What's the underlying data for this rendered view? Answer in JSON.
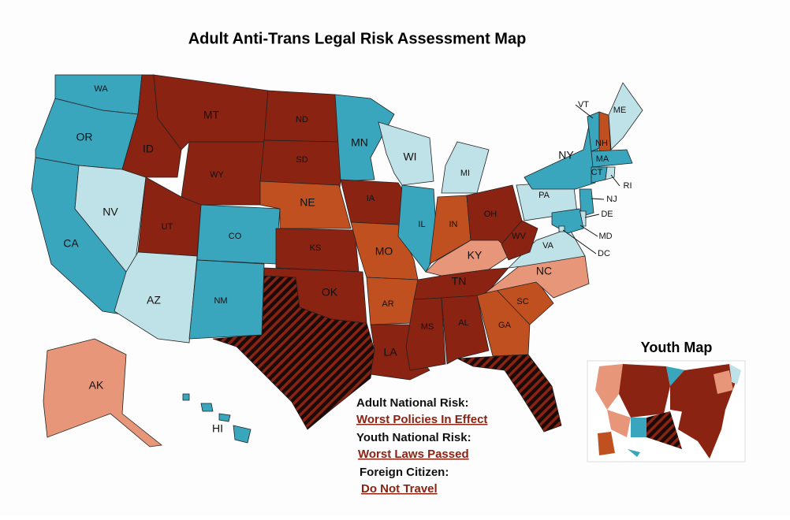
{
  "title": "Adult Anti-Trans Legal Risk Assessment Map",
  "states": [
    {
      "label": "WA",
      "color": "#3aa6be"
    },
    {
      "label": "OR",
      "color": "#3aa6be"
    },
    {
      "label": "CA",
      "color": "#3aa6be"
    },
    {
      "label": "NV",
      "color": "#bfe2e8"
    },
    {
      "label": "ID",
      "color": "#8b2313"
    },
    {
      "label": "MT",
      "color": "#8b2313"
    },
    {
      "label": "WY",
      "color": "#8b2313"
    },
    {
      "label": "UT",
      "color": "#8b2313"
    },
    {
      "label": "AZ",
      "color": "#bfe2e8"
    },
    {
      "label": "CO",
      "color": "#3aa6be"
    },
    {
      "label": "NM",
      "color": "#3aa6be"
    },
    {
      "label": "ND",
      "color": "#8b2313"
    },
    {
      "label": "SD",
      "color": "#8b2313"
    },
    {
      "label": "NE",
      "color": "#c0501f"
    },
    {
      "label": "KS",
      "color": "#8b2313"
    },
    {
      "label": "OK",
      "color": "#8b2313"
    },
    {
      "label": "MN",
      "color": "#3aa6be"
    },
    {
      "label": "IA",
      "color": "#8b2313"
    },
    {
      "label": "MO",
      "color": "#c0501f"
    },
    {
      "label": "AR",
      "color": "#c0501f"
    },
    {
      "label": "LA",
      "color": "#8b2313"
    },
    {
      "label": "WI",
      "color": "#bfe2e8"
    },
    {
      "label": "IL",
      "color": "#3aa6be"
    },
    {
      "label": "MI",
      "color": "#bfe2e8"
    },
    {
      "label": "IN",
      "color": "#c0501f"
    },
    {
      "label": "OH",
      "color": "#8b2313"
    },
    {
      "label": "KY",
      "color": "#e8967a"
    },
    {
      "label": "TN",
      "color": "#8b2313"
    },
    {
      "label": "MS",
      "color": "#8b2313"
    },
    {
      "label": "AL",
      "color": "#8b2313"
    },
    {
      "label": "GA",
      "color": "#c0501f"
    },
    {
      "label": "SC",
      "color": "#c0501f"
    },
    {
      "label": "NC",
      "color": "#e8967a"
    },
    {
      "label": "VA",
      "color": "#bfe2e8"
    },
    {
      "label": "WV",
      "color": "#8b2313"
    },
    {
      "label": "PA",
      "color": "#bfe2e8"
    },
    {
      "label": "NY",
      "color": "#3aa6be"
    },
    {
      "label": "VT",
      "color": "#3aa6be"
    },
    {
      "label": "NH",
      "color": "#c0501f"
    },
    {
      "label": "ME",
      "color": "#bfe2e8"
    },
    {
      "label": "MA",
      "color": "#3aa6be"
    },
    {
      "label": "CT",
      "color": "#3aa6be"
    },
    {
      "label": "RI",
      "color": "#bfe2e8"
    },
    {
      "label": "NJ",
      "color": "#3aa6be"
    },
    {
      "label": "DE",
      "color": "#bfe2e8"
    },
    {
      "label": "MD",
      "color": "#3aa6be"
    },
    {
      "label": "DC",
      "color": "#bfe2e8"
    },
    {
      "label": "AK",
      "color": "#e8967a"
    },
    {
      "label": "HI",
      "color": "#3aa6be"
    }
  ],
  "legend": [
    {
      "heading": "Adult National Risk:",
      "value": "Worst Policies In Effect"
    },
    {
      "heading": "Youth National Risk:",
      "value": "Worst Laws Passed"
    },
    {
      "heading": "Foreign Citizen:",
      "value": "Do Not Travel"
    }
  ],
  "inset": {
    "title": "Youth Map"
  }
}
